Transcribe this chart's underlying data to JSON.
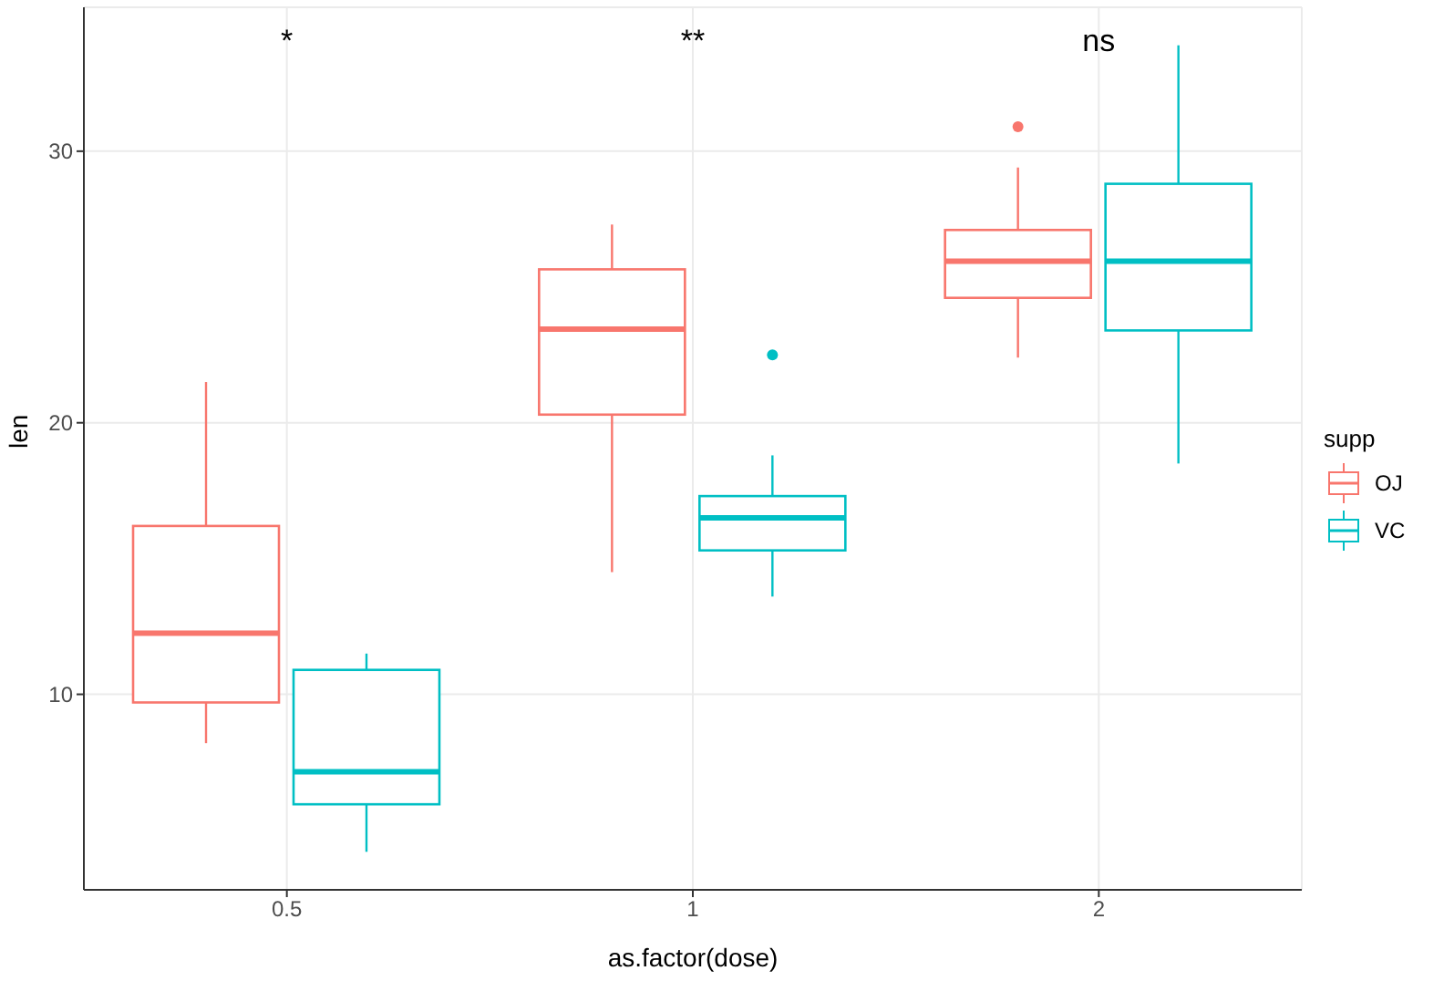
{
  "chart_data": {
    "type": "box",
    "xlabel": "as.factor(dose)",
    "ylabel": "len",
    "legend_title": "supp",
    "categories": [
      "0.5",
      "1",
      "2"
    ],
    "series": [
      {
        "name": "OJ",
        "color": "#f8766d",
        "boxes": [
          {
            "low": 8.2,
            "q1": 9.7,
            "median": 12.25,
            "q3": 16.2,
            "high": 21.5
          },
          {
            "low": 14.5,
            "q1": 20.3,
            "median": 23.45,
            "q3": 25.65,
            "high": 27.3
          },
          {
            "low": 22.4,
            "q1": 24.6,
            "median": 25.95,
            "q3": 27.1,
            "high": 29.4,
            "outliers": [
              30.9
            ]
          }
        ]
      },
      {
        "name": "VC",
        "color": "#00bfc4",
        "boxes": [
          {
            "low": 4.2,
            "q1": 5.95,
            "median": 7.15,
            "q3": 10.9,
            "high": 11.5
          },
          {
            "low": 13.6,
            "q1": 15.3,
            "median": 16.5,
            "q3": 17.3,
            "high": 18.8,
            "outliers": [
              22.5
            ]
          },
          {
            "low": 18.5,
            "q1": 23.4,
            "median": 25.95,
            "q3": 28.8,
            "high": 33.9
          }
        ]
      }
    ],
    "annotations": [
      "*",
      "**",
      "ns"
    ],
    "ylim": [
      2.8,
      35.3
    ],
    "yticks": [
      10,
      20,
      30
    ],
    "grid": true,
    "legend": "right"
  }
}
